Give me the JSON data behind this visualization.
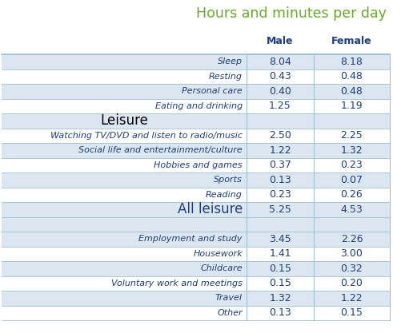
{
  "title": "Hours and minutes per day",
  "title_color": "#6aaa2a",
  "header_color": "#1f3e7c",
  "rows": [
    {
      "label": "Sleep",
      "male": "8.04",
      "female": "8.18",
      "type": "normal",
      "bg": "#dce6f1"
    },
    {
      "label": "Resting",
      "male": "0.43",
      "female": "0.48",
      "type": "normal",
      "bg": "#ffffff"
    },
    {
      "label": "Personal care",
      "male": "0.40",
      "female": "0.48",
      "type": "normal",
      "bg": "#dce6f1"
    },
    {
      "label": "Eating and drinking",
      "male": "1.25",
      "female": "1.19",
      "type": "normal",
      "bg": "#ffffff"
    },
    {
      "label": "Leisure",
      "male": "",
      "female": "",
      "type": "section",
      "bg": "#dce6f1"
    },
    {
      "label": "Watching TV/DVD and listen to radio/music",
      "male": "2.50",
      "female": "2.25",
      "type": "normal",
      "bg": "#ffffff"
    },
    {
      "label": "Social life and entertainment/culture",
      "male": "1.22",
      "female": "1.32",
      "type": "normal",
      "bg": "#dce6f1"
    },
    {
      "label": "Hobbies and games",
      "male": "0.37",
      "female": "0.23",
      "type": "normal",
      "bg": "#ffffff"
    },
    {
      "label": "Sports",
      "male": "0.13",
      "female": "0.07",
      "type": "normal",
      "bg": "#dce6f1"
    },
    {
      "label": "Reading",
      "male": "0.23",
      "female": "0.26",
      "type": "normal",
      "bg": "#ffffff"
    },
    {
      "label": "All leisure",
      "male": "5.25",
      "female": "4.53",
      "type": "summary",
      "bg": "#dce6f1"
    },
    {
      "label": "",
      "male": "",
      "female": "",
      "type": "blank",
      "bg": "#dce6f1"
    },
    {
      "label": "Employment and study",
      "male": "3.45",
      "female": "2.26",
      "type": "normal",
      "bg": "#dce6f1"
    },
    {
      "label": "Housework",
      "male": "1.41",
      "female": "3.00",
      "type": "normal",
      "bg": "#ffffff"
    },
    {
      "label": "Childcare",
      "male": "0.15",
      "female": "0.32",
      "type": "normal",
      "bg": "#dce6f1"
    },
    {
      "label": "Voluntary work and meetings",
      "male": "0.15",
      "female": "0.20",
      "type": "normal",
      "bg": "#ffffff"
    },
    {
      "label": "Travel",
      "male": "1.32",
      "female": "1.22",
      "type": "normal",
      "bg": "#dce6f1"
    },
    {
      "label": "Other",
      "male": "0.13",
      "female": "0.15",
      "type": "normal",
      "bg": "#ffffff"
    }
  ],
  "label_text_color": "#1f3e7c",
  "value_text_color": "#1f3e7c",
  "section_text_color": "#000000",
  "line_color": "#a0bfd0",
  "fig_width": 4.91,
  "fig_height": 4.17,
  "dpi": 100
}
